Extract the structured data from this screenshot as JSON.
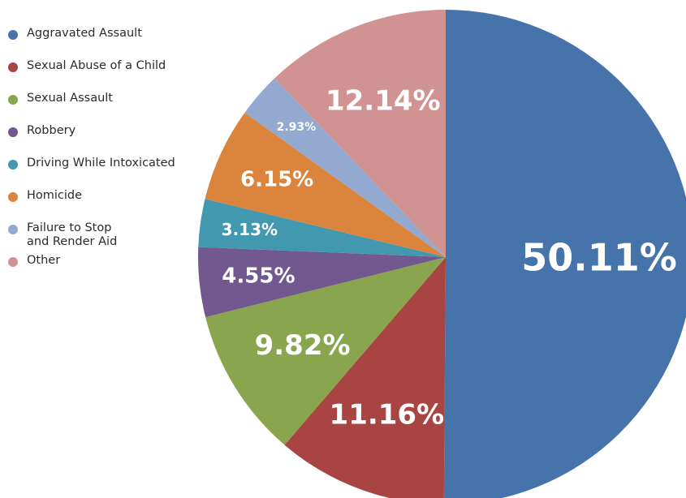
{
  "chart_data": {
    "type": "pie",
    "start": "12 o'clock",
    "direction": "clockwise",
    "slices": [
      {
        "label": "Aggravated Assault",
        "value": 50.11,
        "display": "50.11%",
        "color": "#4673a9"
      },
      {
        "label": "Sexual Abuse of a Child",
        "value": 11.16,
        "display": "11.16%",
        "color": "#a84442"
      },
      {
        "label": "Sexual Assault",
        "value": 9.82,
        "display": "9.82%",
        "color": "#89a54e"
      },
      {
        "label": "Robbery",
        "value": 4.55,
        "display": "4.55%",
        "color": "#71588f"
      },
      {
        "label": "Driving While Intoxicated",
        "value": 3.13,
        "display": "3.13%",
        "color": "#4198af"
      },
      {
        "label": "Homicide",
        "value": 6.15,
        "display": "6.15%",
        "color": "#db843d"
      },
      {
        "label": "Failure to Stop\nand Render Aid",
        "value": 2.93,
        "display": "2.93%",
        "color": "#93a9cf"
      },
      {
        "label": "Other",
        "value": 12.14,
        "display": "12.14%",
        "color": "#d19392"
      }
    ]
  }
}
